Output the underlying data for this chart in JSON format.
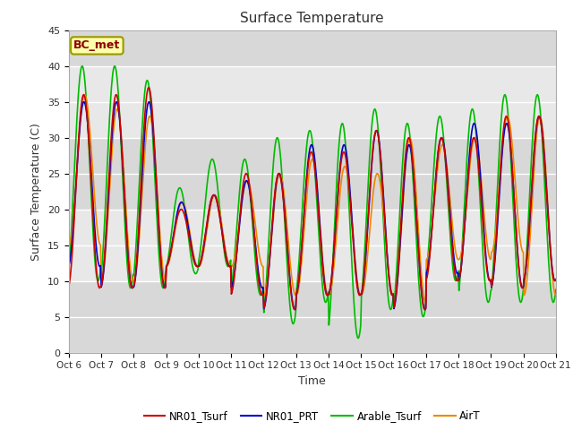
{
  "title": "Surface Temperature",
  "ylabel": "Surface Temperature (C)",
  "xlabel": "Time",
  "ylim": [
    0,
    45
  ],
  "fig_bg_color": "#ffffff",
  "plot_bg_color": "#e8e8e8",
  "annotation_text": "BC_met",
  "annotation_color": "#8b0000",
  "annotation_bg": "#ffffaa",
  "annotation_edge": "#999900",
  "series": {
    "NR01_Tsurf": {
      "color": "#cc0000",
      "lw": 1.2
    },
    "NR01_PRT": {
      "color": "#0000cc",
      "lw": 1.2
    },
    "Arable_Tsurf": {
      "color": "#00bb00",
      "lw": 1.2
    },
    "AirT": {
      "color": "#ee8800",
      "lw": 1.2
    }
  },
  "tick_labels": [
    "Oct 6",
    "Oct 7",
    "Oct 8",
    "Oct 9",
    "Oct 10",
    "Oct 11",
    "Oct 12",
    "Oct 13",
    "Oct 14",
    "Oct 15",
    "Oct 16",
    "Oct 17",
    "Oct 18",
    "Oct 19",
    "Oct 20",
    "Oct 21"
  ],
  "yticks": [
    0,
    5,
    10,
    15,
    20,
    25,
    30,
    35,
    40,
    45
  ],
  "n_days": 15,
  "pts_per_day": 48,
  "day_peaks_nr01": [
    36,
    36,
    37,
    20,
    22,
    25,
    25,
    28,
    28,
    31,
    30,
    30,
    30,
    33,
    33
  ],
  "day_troughs_nr01": [
    9,
    9,
    9,
    12,
    12,
    8,
    6,
    8,
    8,
    8,
    6,
    10,
    10,
    9,
    10
  ],
  "day_peaks_prt": [
    35,
    35,
    35,
    21,
    22,
    24,
    25,
    29,
    29,
    31,
    29,
    30,
    32,
    32,
    33
  ],
  "day_troughs_prt": [
    12,
    9,
    9,
    12,
    12,
    9,
    6,
    8,
    8,
    8,
    6,
    11,
    10,
    9,
    10
  ],
  "day_peaks_ar": [
    40,
    40,
    38,
    23,
    27,
    27,
    30,
    31,
    32,
    34,
    32,
    33,
    34,
    36,
    36
  ],
  "day_troughs_ar": [
    10,
    9,
    9,
    11,
    12,
    8,
    4,
    7,
    2,
    6,
    5,
    10,
    7,
    7,
    7
  ],
  "day_peaks_air": [
    36,
    34,
    33,
    21,
    22,
    24,
    25,
    27,
    26,
    25,
    30,
    29,
    30,
    33,
    33
  ],
  "day_troughs_air": [
    15,
    10,
    10,
    12,
    12,
    12,
    8,
    8,
    8,
    8,
    7,
    13,
    13,
    14,
    8
  ],
  "phase_nr01": 0.2,
  "phase_prt": 0.15,
  "phase_ar": 0.5,
  "phase_air": 0.0
}
